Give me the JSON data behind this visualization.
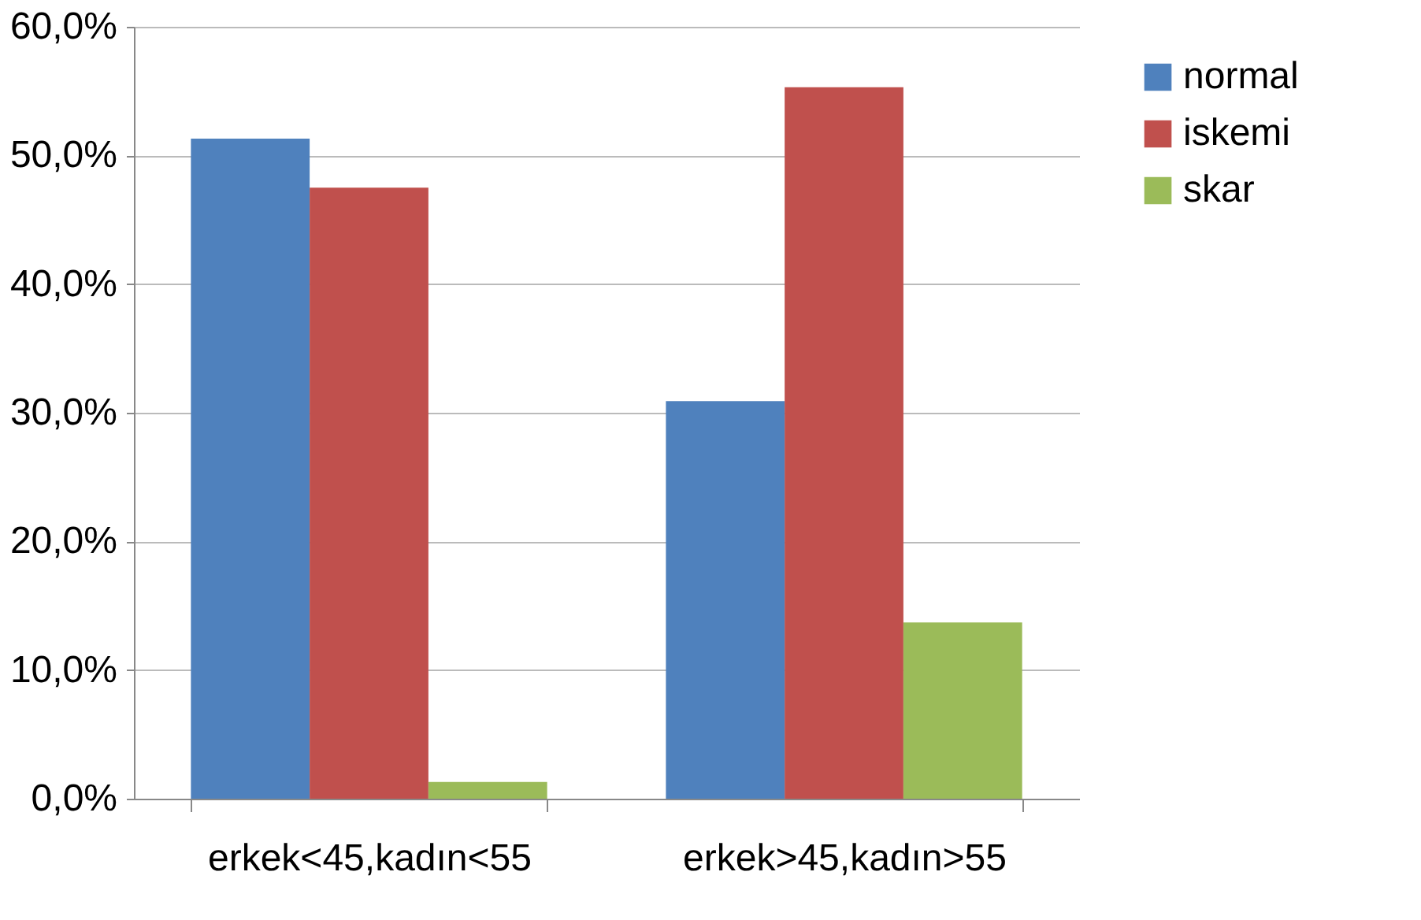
{
  "chart_data": {
    "type": "bar",
    "categories": [
      "erkek<45,kadın<55",
      "erkek>45,kadın>55"
    ],
    "series": [
      {
        "name": "normal",
        "color": "#4f81bd",
        "values": [
          51.3,
          30.9
        ]
      },
      {
        "name": "iskemi",
        "color": "#c0504d",
        "values": [
          47.5,
          55.3
        ]
      },
      {
        "name": "skar",
        "color": "#9bbb59",
        "values": [
          1.3,
          13.7
        ]
      }
    ],
    "ylim": [
      0,
      60
    ],
    "yticks": [
      {
        "value": 0,
        "label": "0,0%"
      },
      {
        "value": 10,
        "label": "10,0%"
      },
      {
        "value": 20,
        "label": "20,0%"
      },
      {
        "value": 30,
        "label": "30,0%"
      },
      {
        "value": 40,
        "label": "40,0%"
      },
      {
        "value": 50,
        "label": "50,0%"
      },
      {
        "value": 60,
        "label": "60,0%"
      }
    ],
    "grid": "y",
    "legend": "right"
  }
}
